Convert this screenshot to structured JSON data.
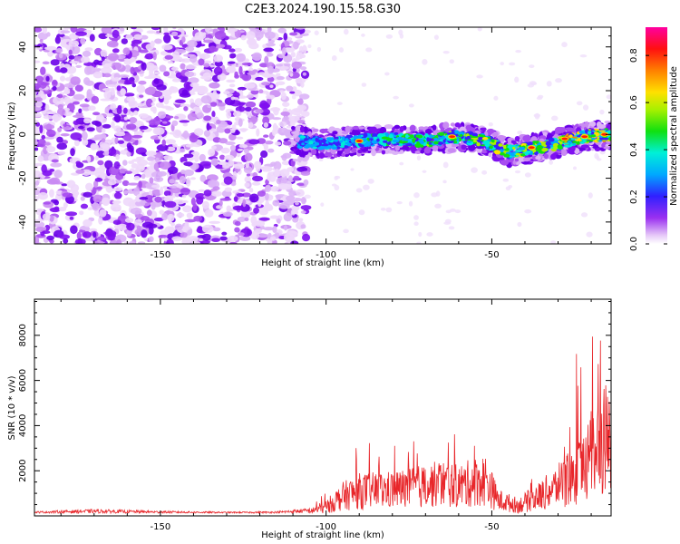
{
  "title": "C2E3.2024.190.15.58.G30",
  "chart_data": [
    {
      "type": "heatmap",
      "xlabel": "Height of straight line (km)",
      "ylabel": "Frequency (Hz)",
      "xlim": [
        -188,
        -14
      ],
      "ylim": [
        -50,
        49
      ],
      "xticks": [
        -150,
        -100,
        -50
      ],
      "yticks": [
        -40,
        -20,
        0,
        20,
        40
      ],
      "colorbar": {
        "label": "Normalized spectral amplitude",
        "range": [
          0,
          0.92
        ],
        "ticks": [
          0.0,
          0.2,
          0.4,
          0.6,
          0.8
        ]
      },
      "features": {
        "noise_region_x": [
          -188,
          -110
        ],
        "signal_track": [
          {
            "x": -110,
            "y": -3
          },
          {
            "x": -100,
            "y": -4
          },
          {
            "x": -90,
            "y": -3
          },
          {
            "x": -80,
            "y": -2
          },
          {
            "x": -70,
            "y": -3
          },
          {
            "x": -60,
            "y": -1
          },
          {
            "x": -52,
            "y": -3
          },
          {
            "x": -45,
            "y": -8
          },
          {
            "x": -40,
            "y": -7
          },
          {
            "x": -30,
            "y": -4
          },
          {
            "x": -22,
            "y": -1
          },
          {
            "x": -14,
            "y": 0
          }
        ]
      }
    },
    {
      "type": "line",
      "xlabel": "Height of straight line (km)",
      "ylabel": "SNR (10 * v/v)",
      "xlim": [
        -188,
        -14
      ],
      "ylim": [
        0,
        9600
      ],
      "xticks": [
        -150,
        -100,
        -50
      ],
      "yticks": [
        2000,
        4000,
        6000,
        8000
      ],
      "series": [
        {
          "color": "#e8262a",
          "envelope": [
            {
              "x": -188,
              "y": 200
            },
            {
              "x": -170,
              "y": 300
            },
            {
              "x": -150,
              "y": 220
            },
            {
              "x": -130,
              "y": 180
            },
            {
              "x": -115,
              "y": 200
            },
            {
              "x": -105,
              "y": 350
            },
            {
              "x": -100,
              "y": 700
            },
            {
              "x": -95,
              "y": 1500
            },
            {
              "x": -90,
              "y": 1900
            },
            {
              "x": -80,
              "y": 2000
            },
            {
              "x": -70,
              "y": 2300
            },
            {
              "x": -65,
              "y": 2500
            },
            {
              "x": -60,
              "y": 2300
            },
            {
              "x": -52,
              "y": 2800
            },
            {
              "x": -48,
              "y": 1200
            },
            {
              "x": -42,
              "y": 800
            },
            {
              "x": -35,
              "y": 1600
            },
            {
              "x": -28,
              "y": 2600
            },
            {
              "x": -24,
              "y": 3400
            },
            {
              "x": -20,
              "y": 4800
            },
            {
              "x": -17,
              "y": 5800
            },
            {
              "x": -14,
              "y": 5200
            }
          ]
        }
      ]
    }
  ]
}
